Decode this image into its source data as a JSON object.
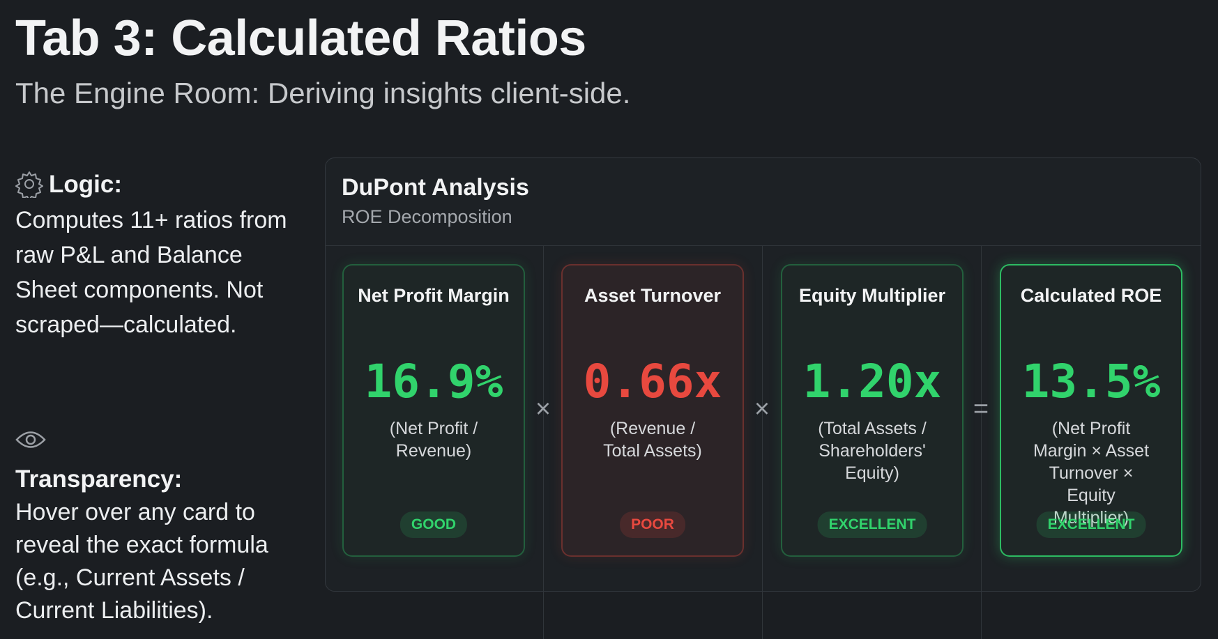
{
  "header": {
    "title": "Tab 3: Calculated Ratios",
    "subtitle": "The Engine Room: Deriving insights client-side."
  },
  "sidebar": [
    {
      "heading": "Logic:",
      "text": "Computes 11+ ratios from raw P&L and Balance Sheet components. Not scraped—calculated."
    },
    {
      "heading": "Transparency:",
      "text": "Hover over any card to reveal the exact formula (e.g., Current Assets / Current Liabilities)."
    }
  ],
  "panel": {
    "title": "DuPont Analysis",
    "subtitle": "ROE Decomposition",
    "cards": [
      {
        "title": "Net Profit Margin",
        "value": "16.9%",
        "formula": "(Net Profit / Revenue)",
        "badge": "GOOD",
        "color": "#31d36c"
      },
      {
        "title": "Asset Turnover",
        "value": "0.66x",
        "formula": "(Revenue / Total Assets)",
        "badge": "POOR",
        "color": "#e8493f"
      },
      {
        "title": "Equity Multiplier",
        "value": "1.20x",
        "formula": "(Total Assets / Shareholders' Equity)",
        "badge": "EXCELLENT",
        "color": "#31d36c"
      },
      {
        "title": "Calculated ROE",
        "value": "13.5%",
        "formula": "(Net Profit Margin × Asset Turnover × Equity Multiplier)",
        "badge": "EXCELLENT",
        "color": "#31d36c"
      }
    ],
    "operators": [
      "×",
      "×",
      "="
    ]
  }
}
